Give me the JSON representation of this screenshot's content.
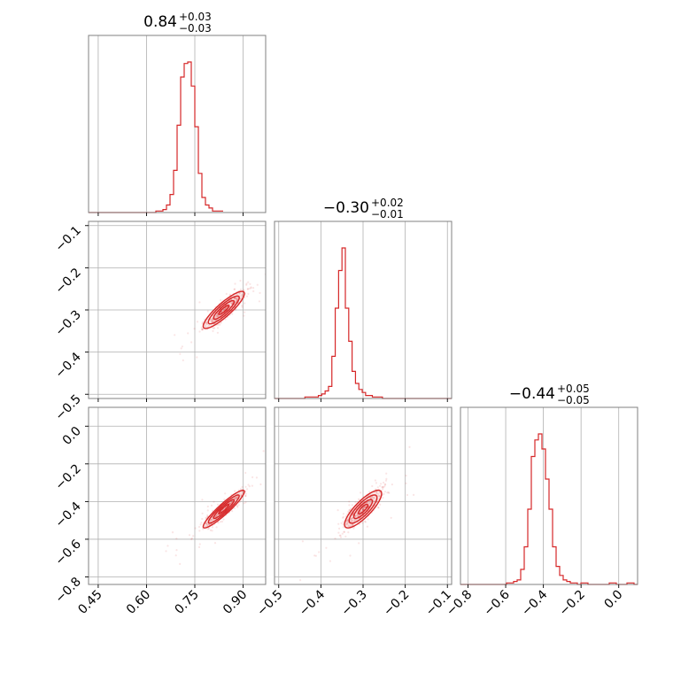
{
  "chart_data": {
    "type": "corner",
    "color": "#d62728",
    "grid": true,
    "parameters": [
      {
        "title": {
          "median": "0.84",
          "plus": "+0.03",
          "minus": "−0.03"
        },
        "range": [
          0.42,
          0.97
        ],
        "ticks": [
          0.45,
          0.6,
          0.75,
          0.9
        ],
        "tick_labels": [
          "0.45",
          "0.60",
          "0.75",
          "0.90"
        ],
        "hist": {
          "bin_start": 0.42,
          "bin_width": 0.011,
          "counts": [
            0,
            0,
            0,
            0,
            0,
            0,
            0,
            0,
            0,
            0,
            0,
            0,
            0,
            0,
            0,
            0,
            0,
            0,
            0,
            1,
            1,
            2,
            5,
            12,
            28,
            58,
            90,
            99,
            100,
            84,
            57,
            26,
            10,
            5,
            3,
            1,
            1,
            1
          ]
        }
      },
      {
        "title": {
          "median": "−0.30",
          "plus": "+0.02",
          "minus": "−0.01"
        },
        "range": [
          -0.51,
          -0.09
        ],
        "ticks": [
          -0.5,
          -0.4,
          -0.3,
          -0.2,
          -0.1
        ],
        "tick_labels": [
          "−0.5",
          "−0.4",
          "−0.3",
          "−0.2",
          "−0.1"
        ],
        "hist": {
          "bin_start": -0.51,
          "bin_width": 0.008,
          "counts": [
            0,
            0,
            0,
            0,
            0,
            0,
            0,
            0,
            0,
            1,
            1,
            1,
            1,
            2,
            3,
            5,
            8,
            28,
            60,
            85,
            100,
            60,
            38,
            18,
            10,
            6,
            4,
            2,
            2,
            1,
            1,
            1,
            0,
            0,
            0,
            0,
            0,
            0,
            0,
            0,
            0,
            0,
            0,
            0,
            0,
            0,
            0,
            0,
            0,
            0,
            0,
            0,
            0
          ]
        }
      },
      {
        "title": {
          "median": "−0.44",
          "plus": "+0.05",
          "minus": "−0.05"
        },
        "range": [
          -0.84,
          0.1
        ],
        "ticks": [
          -0.8,
          -0.6,
          -0.4,
          -0.2,
          0.0
        ],
        "tick_labels": [
          "−0.8",
          "−0.6",
          "−0.4",
          "−0.2",
          "0.0"
        ],
        "hist": {
          "bin_start": -0.84,
          "bin_width": 0.0188,
          "counts": [
            0,
            0,
            0,
            0,
            0,
            0,
            0,
            0,
            0,
            0,
            0,
            0,
            0,
            1,
            1,
            2,
            3,
            10,
            25,
            50,
            85,
            96,
            100,
            90,
            70,
            50,
            25,
            12,
            6,
            3,
            2,
            1,
            1,
            0,
            1,
            1,
            0,
            0,
            0,
            0,
            0,
            0,
            1,
            1,
            0,
            0,
            0,
            1,
            1,
            0,
            0
          ]
        }
      }
    ],
    "joint": [
      {
        "x_param": 0,
        "y_param": 1,
        "slope": 0.9,
        "correlation": 0.88,
        "center": [
          0.84,
          -0.3
        ],
        "sigma": [
          0.032,
          0.022
        ],
        "n_points": 500
      },
      {
        "x_param": 0,
        "y_param": 2,
        "slope": 1.9,
        "correlation": 0.93,
        "center": [
          0.84,
          -0.44
        ],
        "sigma": [
          0.032,
          0.05
        ],
        "n_points": 500
      },
      {
        "x_param": 1,
        "y_param": 2,
        "slope": 1.7,
        "correlation": 0.82,
        "center": [
          -0.3,
          -0.44
        ],
        "sigma": [
          0.022,
          0.05
        ],
        "n_points": 500
      }
    ]
  }
}
